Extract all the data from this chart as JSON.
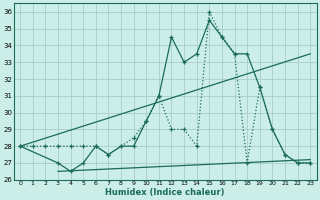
{
  "xlabel": "Humidex (Indice chaleur)",
  "bg_color": "#cceee8",
  "grid_color": "#aacccc",
  "line_color": "#1a6b5a",
  "xlim": [
    -0.5,
    23.5
  ],
  "ylim": [
    26,
    36.5
  ],
  "xticks": [
    0,
    1,
    2,
    3,
    4,
    5,
    6,
    7,
    8,
    9,
    10,
    11,
    12,
    13,
    14,
    15,
    16,
    17,
    18,
    19,
    20,
    21,
    22,
    23
  ],
  "yticks": [
    26,
    27,
    28,
    29,
    30,
    31,
    32,
    33,
    34,
    35,
    36
  ],
  "dotted_x": [
    0,
    1,
    2,
    3,
    4,
    5,
    6,
    7,
    8,
    9,
    10,
    11,
    12,
    13,
    14,
    15,
    16,
    17,
    18,
    19,
    20,
    21,
    22,
    23
  ],
  "dotted_y": [
    28,
    28,
    28,
    28,
    28,
    28,
    28,
    27.5,
    28,
    28.5,
    29.5,
    31,
    29,
    29,
    28,
    36,
    34.5,
    33.5,
    27,
    31.5,
    29,
    27.5,
    27,
    27
  ],
  "solid_x": [
    0,
    3,
    4,
    5,
    6,
    7,
    8,
    9,
    10,
    11,
    12,
    13,
    14,
    15,
    16,
    17,
    18,
    19,
    20,
    21,
    22,
    23
  ],
  "solid_y": [
    28,
    27,
    26.5,
    27,
    28,
    27.5,
    28,
    28,
    29.5,
    31,
    34.5,
    33,
    33.5,
    35.5,
    34.5,
    33.5,
    33.5,
    31.5,
    29,
    27.5,
    27,
    27
  ],
  "trend1_x": [
    0,
    23
  ],
  "trend1_y": [
    28,
    33.5
  ],
  "trend2_x": [
    3,
    23
  ],
  "trend2_y": [
    26.5,
    27.2
  ]
}
